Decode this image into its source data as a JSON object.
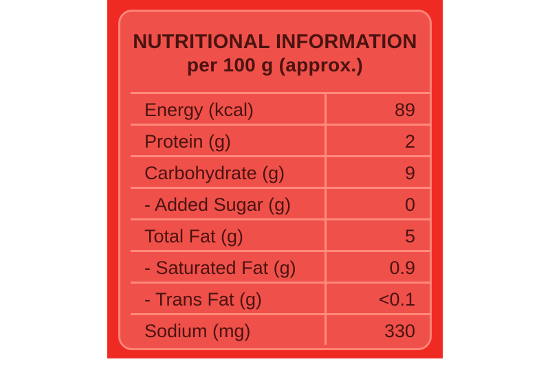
{
  "label": {
    "title": "NUTRITIONAL INFORMATION",
    "subtitle": "per 100 g (approx.)",
    "rows": [
      {
        "name": "Energy (kcal)",
        "value": "89"
      },
      {
        "name": "Protein (g)",
        "value": "2"
      },
      {
        "name": "Carbohydrate (g)",
        "value": "9"
      },
      {
        "name": "- Added Sugar (g)",
        "value": "0"
      },
      {
        "name": "Total Fat (g)",
        "value": "5"
      },
      {
        "name": "- Saturated Fat (g)",
        "value": "0.9"
      },
      {
        "name": "- Trans Fat (g)",
        "value": "<0.1"
      },
      {
        "name": "Sodium (mg)",
        "value": "330"
      }
    ]
  },
  "colors": {
    "package": "#ee2a22",
    "panel": "#f0504a",
    "rule": "#ff8a7c",
    "text": "#4a1310"
  }
}
